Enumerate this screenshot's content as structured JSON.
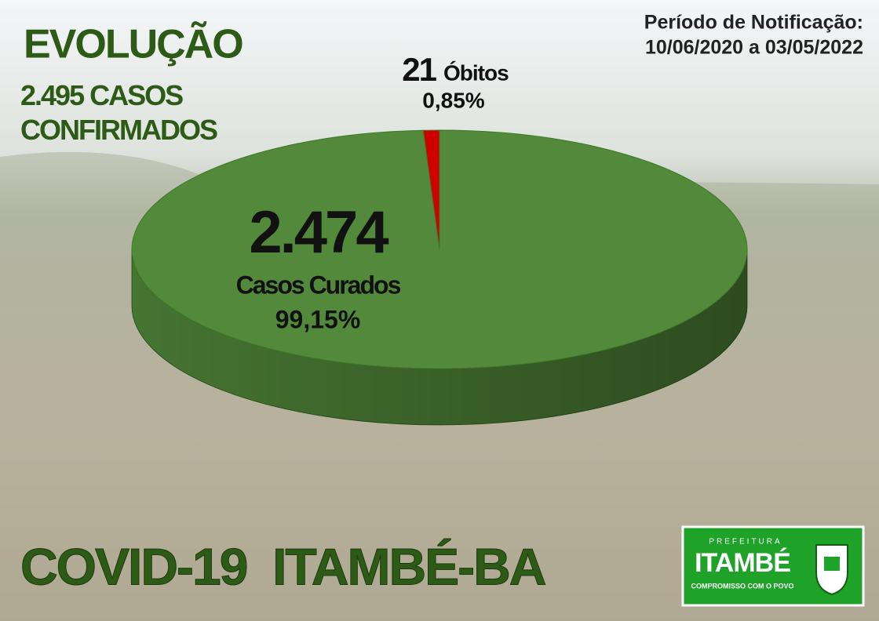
{
  "chart_data": {
    "type": "pie",
    "title": "EVOLUÇÃO",
    "subtitle": "2.495 CASOS CONFIRMADOS",
    "period_label": "Período de Notificação:",
    "period": "10/06/2020 a 03/05/2022",
    "categories": [
      "Casos Curados",
      "Óbitos"
    ],
    "values": [
      2474,
      21
    ],
    "value_labels": [
      "2.474",
      "21"
    ],
    "percent_labels": [
      "99,15%",
      "0,85%"
    ],
    "colors": [
      "#52893a",
      "#d00000"
    ],
    "footer": "COVID-19  ITAMBÉ-BA",
    "logo": {
      "top": "PREFEITURA",
      "name": "ITAMBÉ",
      "motto": "COMPROMISSO COM O POVO"
    }
  }
}
